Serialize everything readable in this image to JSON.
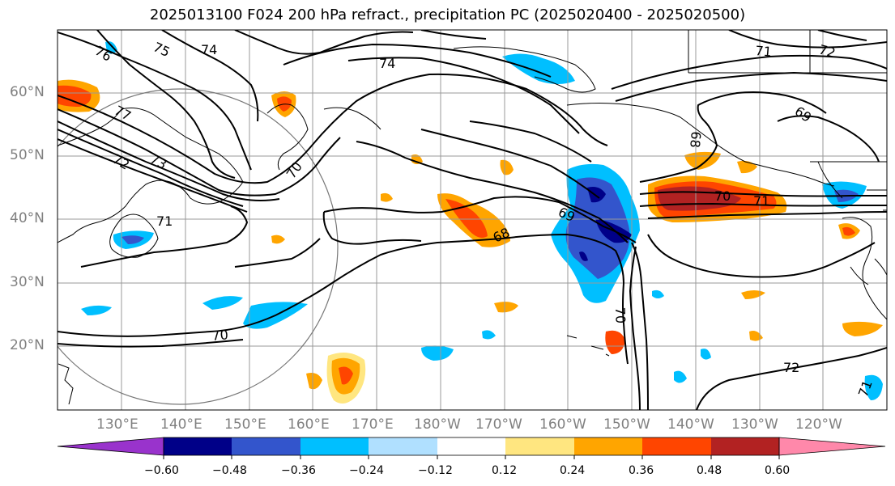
{
  "title": "2025013100 F024 200 hPa refract., precipitation PC (2025020400 - 2025020500)",
  "latitude_labels": [
    "60°N",
    "50°N",
    "40°N",
    "30°N",
    "20°N"
  ],
  "longitude_labels": [
    "130°E",
    "140°E",
    "150°E",
    "160°E",
    "170°E",
    "180°W",
    "170°W",
    "160°W",
    "150°W",
    "140°W",
    "130°W",
    "120°W"
  ],
  "contour_labels": [
    "76",
    "75",
    "74",
    "77",
    "73",
    "72",
    "71",
    "70",
    "74",
    "70",
    "69",
    "68",
    "71",
    "72",
    "69",
    "68",
    "70",
    "71",
    "70",
    "72",
    "71"
  ],
  "colorbar": {
    "ticks": [
      "−0.60",
      "−0.48",
      "−0.36",
      "−0.24",
      "−0.12",
      "0.12",
      "0.24",
      "0.36",
      "0.48",
      "0.60"
    ],
    "colors": [
      "#9933cc",
      "#000088",
      "#3355cc",
      "#00bfff",
      "#b0e0ff",
      "#ffffff",
      "#ffe680",
      "#ffa500",
      "#ff4500",
      "#b22222",
      "#ff88aa"
    ]
  },
  "colors": {
    "contour": "#000000",
    "grid": "#999999",
    "coast": "#000000",
    "circle": "#777777"
  }
}
